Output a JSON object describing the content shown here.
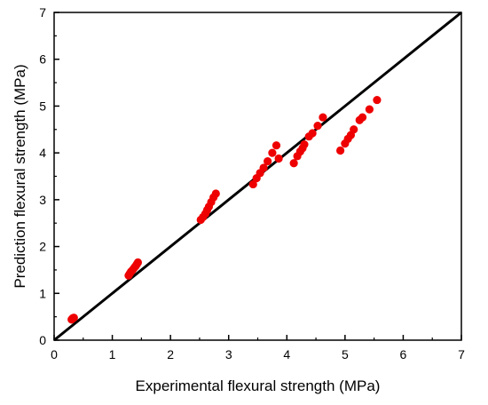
{
  "chart_data": {
    "type": "scatter",
    "title": "",
    "xlabel": "Experimental flexural strength (MPa)",
    "ylabel": "Prediction flexural strength (MPa)",
    "xlim": [
      0,
      7
    ],
    "ylim": [
      0,
      7
    ],
    "xticks": [
      "0",
      "1",
      "2",
      "3",
      "4",
      "5",
      "6",
      "7"
    ],
    "yticks": [
      "0",
      "1",
      "2",
      "3",
      "4",
      "5",
      "6",
      "7"
    ],
    "grid": false,
    "colors": {
      "points": "#ee0000",
      "reference_line": "#000000",
      "axes": "#000000"
    },
    "reference_line": {
      "type": "y=x",
      "from": [
        0,
        0
      ],
      "to": [
        7,
        7
      ]
    },
    "series": [
      {
        "points": [
          [
            0.3,
            0.44
          ],
          [
            0.32,
            0.47
          ],
          [
            0.34,
            0.48
          ],
          [
            1.28,
            1.38
          ],
          [
            1.3,
            1.42
          ],
          [
            1.32,
            1.46
          ],
          [
            1.35,
            1.5
          ],
          [
            1.38,
            1.55
          ],
          [
            1.4,
            1.58
          ],
          [
            1.42,
            1.62
          ],
          [
            1.44,
            1.66
          ],
          [
            2.52,
            2.57
          ],
          [
            2.56,
            2.63
          ],
          [
            2.6,
            2.7
          ],
          [
            2.63,
            2.78
          ],
          [
            2.66,
            2.85
          ],
          [
            2.7,
            2.95
          ],
          [
            2.74,
            3.05
          ],
          [
            2.78,
            3.13
          ],
          [
            3.42,
            3.33
          ],
          [
            3.48,
            3.46
          ],
          [
            3.54,
            3.57
          ],
          [
            3.6,
            3.68
          ],
          [
            3.67,
            3.82
          ],
          [
            3.75,
            4.0
          ],
          [
            3.82,
            4.16
          ],
          [
            3.86,
            3.88
          ],
          [
            4.12,
            3.78
          ],
          [
            4.18,
            3.93
          ],
          [
            4.23,
            4.03
          ],
          [
            4.27,
            4.1
          ],
          [
            4.3,
            4.18
          ],
          [
            4.38,
            4.35
          ],
          [
            4.44,
            4.42
          ],
          [
            4.53,
            4.58
          ],
          [
            4.62,
            4.76
          ],
          [
            4.92,
            4.05
          ],
          [
            5.0,
            4.2
          ],
          [
            5.05,
            4.3
          ],
          [
            5.1,
            4.38
          ],
          [
            5.15,
            4.5
          ],
          [
            5.25,
            4.7
          ],
          [
            5.3,
            4.76
          ],
          [
            5.42,
            4.93
          ],
          [
            5.55,
            5.13
          ]
        ]
      }
    ]
  }
}
